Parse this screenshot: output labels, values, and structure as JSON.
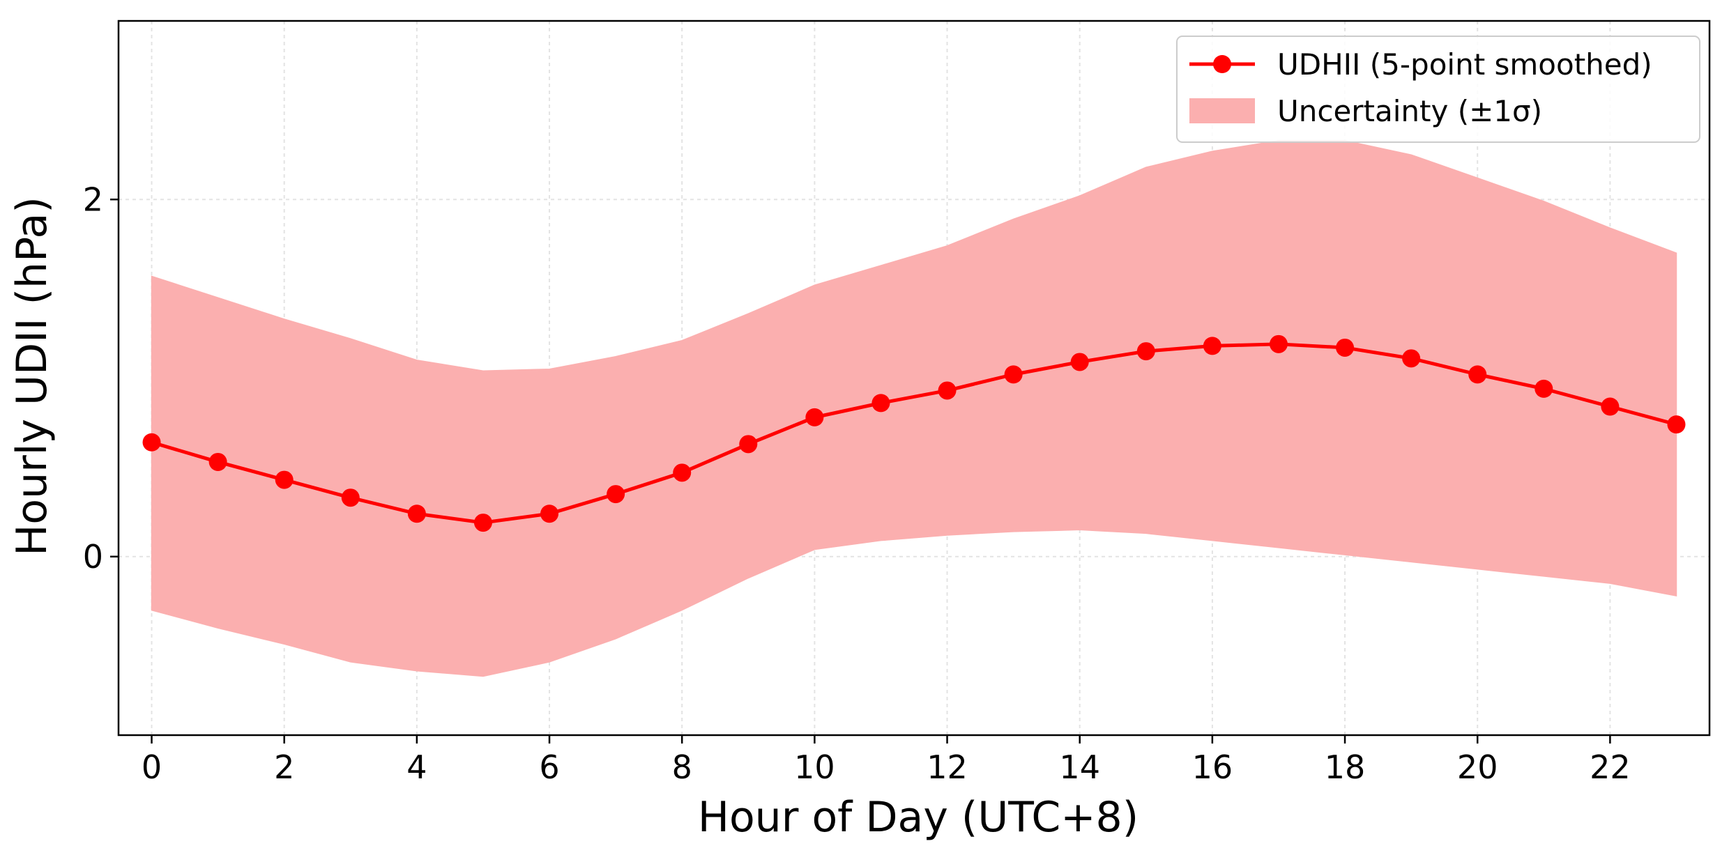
{
  "chart_data": {
    "type": "line",
    "title": "",
    "xlabel": "Hour of Day (UTC+8)",
    "ylabel": "Hourly UDII (hPa)",
    "xlim": [
      -0.5,
      23.5
    ],
    "ylim": [
      -1.0,
      3.0
    ],
    "xticks": [
      0,
      2,
      4,
      6,
      8,
      10,
      12,
      14,
      16,
      18,
      20,
      22
    ],
    "yticks": [
      0,
      2
    ],
    "grid": true,
    "legend_position": "top-right",
    "x": [
      0,
      1,
      2,
      3,
      4,
      5,
      6,
      7,
      8,
      9,
      10,
      11,
      12,
      13,
      14,
      15,
      16,
      17,
      18,
      19,
      20,
      21,
      22,
      23
    ],
    "series": [
      {
        "name": "UDHII (5-point smoothed)",
        "kind": "line-marker",
        "color": "#ff0000",
        "values": [
          0.64,
          0.53,
          0.43,
          0.33,
          0.24,
          0.19,
          0.24,
          0.35,
          0.47,
          0.63,
          0.78,
          0.86,
          0.93,
          1.02,
          1.09,
          1.15,
          1.18,
          1.19,
          1.17,
          1.11,
          1.02,
          0.94,
          0.84,
          0.74
        ]
      },
      {
        "name": "Uncertainty (±1σ)",
        "kind": "band",
        "color": "#fbafaf",
        "lower": [
          -0.3,
          -0.4,
          -0.49,
          -0.59,
          -0.64,
          -0.67,
          -0.59,
          -0.46,
          -0.3,
          -0.12,
          0.04,
          0.09,
          0.12,
          0.14,
          0.15,
          0.13,
          0.09,
          0.05,
          0.01,
          -0.03,
          -0.07,
          -0.11,
          -0.15,
          -0.22
        ],
        "upper": [
          1.57,
          1.45,
          1.33,
          1.22,
          1.1,
          1.04,
          1.05,
          1.12,
          1.21,
          1.36,
          1.52,
          1.63,
          1.74,
          1.89,
          2.02,
          2.18,
          2.27,
          2.33,
          2.33,
          2.25,
          2.12,
          1.99,
          1.84,
          1.7
        ]
      }
    ]
  }
}
